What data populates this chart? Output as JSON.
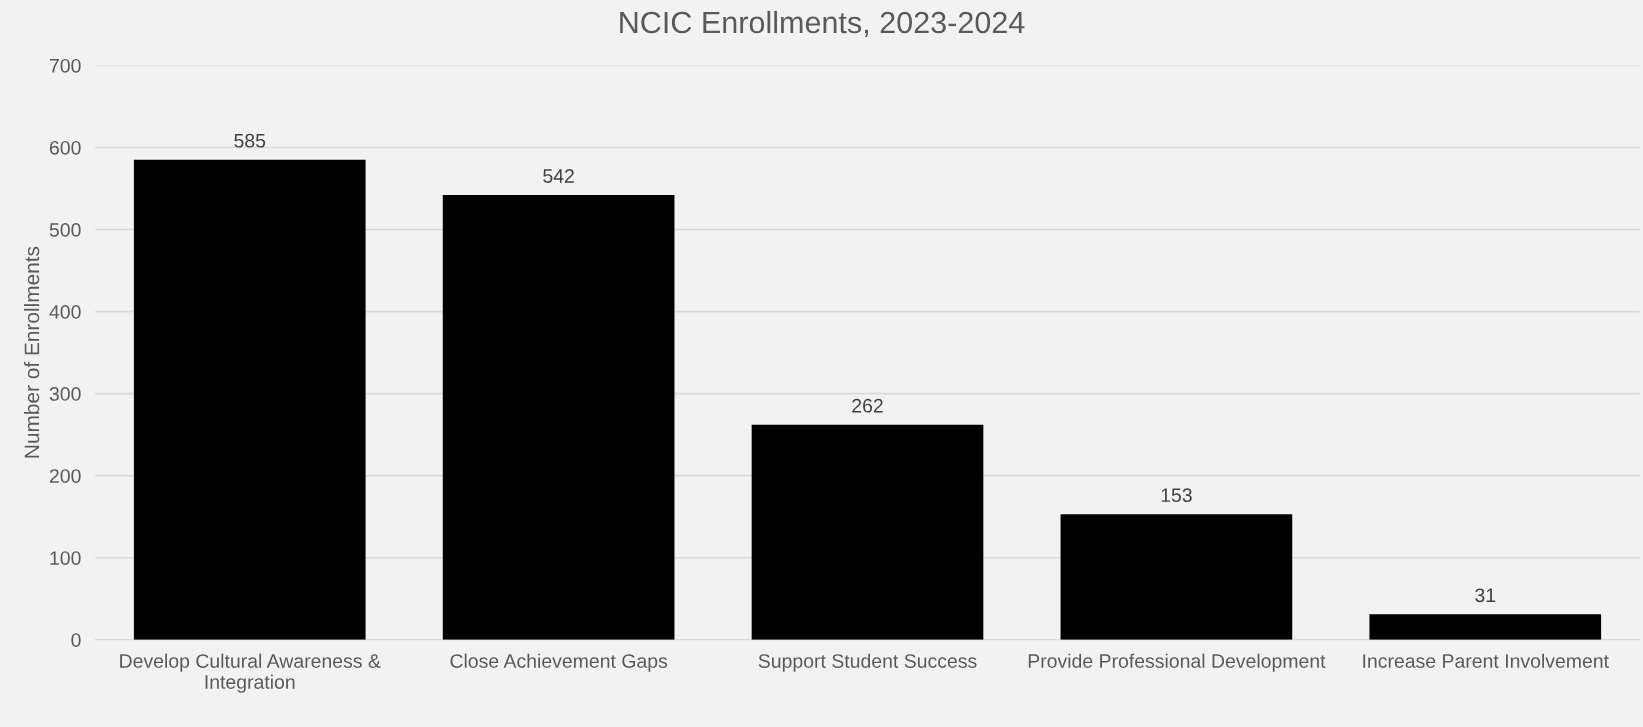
{
  "chart_data": {
    "type": "bar",
    "title": "NCIC Enrollments, 2023-2024",
    "ylabel": "Number of Enrollments",
    "categories": [
      "Develop Cultural Awareness &\nIntegration",
      "Close Achievement Gaps",
      "Support Student Success",
      "Provide Professional Development",
      "Increase Parent Involvement"
    ],
    "values": [
      585,
      542,
      262,
      153,
      31
    ],
    "color": "#000000",
    "ylim": [
      0,
      700
    ],
    "yticks": [
      0,
      100,
      200,
      300,
      400,
      500,
      600,
      700
    ],
    "grid": "y",
    "data_labels": true
  }
}
